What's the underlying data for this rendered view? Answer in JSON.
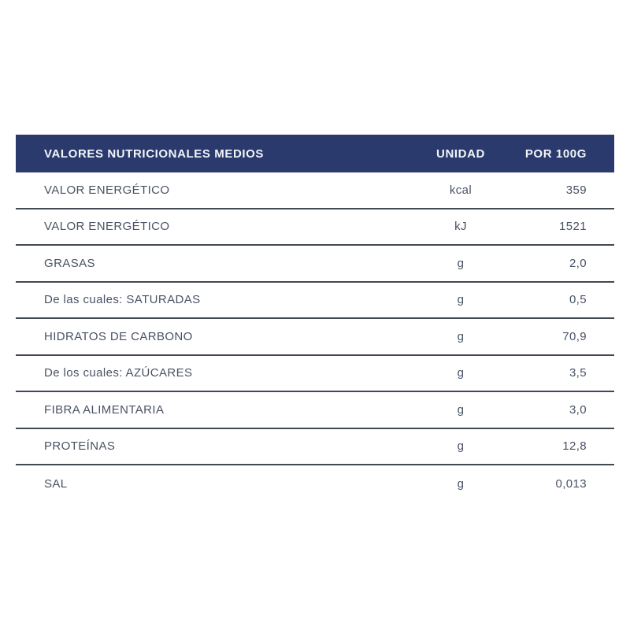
{
  "table": {
    "header": {
      "title": "VALORES NUTRICIONALES MEDIOS",
      "unit_column": "UNIDAD",
      "per_column": "POR 100G"
    },
    "rows": [
      {
        "label": "VALOR ENERGÉTICO",
        "unit": "kcal",
        "value": "359"
      },
      {
        "label": "VALOR ENERGÉTICO",
        "unit": "kJ",
        "value": "1521"
      },
      {
        "label": "GRASAS",
        "unit": "g",
        "value": "2,0"
      },
      {
        "label": "De las cuales: SATURADAS",
        "unit": "g",
        "value": "0,5"
      },
      {
        "label": "HIDRATOS DE CARBONO",
        "unit": "g",
        "value": "70,9"
      },
      {
        "label": "De los cuales: AZÚCARES",
        "unit": "g",
        "value": "3,5"
      },
      {
        "label": "FIBRA ALIMENTARIA",
        "unit": "g",
        "value": "3,0"
      },
      {
        "label": "PROTEÍNAS",
        "unit": "g",
        "value": "12,8"
      },
      {
        "label": "SAL",
        "unit": "g",
        "value": "0,013"
      }
    ],
    "colors": {
      "header_bg": "#2b3a6d",
      "header_text": "#f3f5fa",
      "body_text": "#495264",
      "divider": "#424955",
      "background": "#ffffff"
    }
  },
  "chart_data": {
    "type": "table",
    "title": "VALORES NUTRICIONALES MEDIOS",
    "columns": [
      "VALORES NUTRICIONALES MEDIOS",
      "UNIDAD",
      "POR 100G"
    ],
    "rows": [
      [
        "VALOR ENERGÉTICO",
        "kcal",
        "359"
      ],
      [
        "VALOR ENERGÉTICO",
        "kJ",
        "1521"
      ],
      [
        "GRASAS",
        "g",
        "2,0"
      ],
      [
        "De las cuales: SATURADAS",
        "g",
        "0,5"
      ],
      [
        "HIDRATOS DE CARBONO",
        "g",
        "70,9"
      ],
      [
        "De los cuales: AZÚCARES",
        "g",
        "3,5"
      ],
      [
        "FIBRA ALIMENTARIA",
        "g",
        "3,0"
      ],
      [
        "PROTEÍNAS",
        "g",
        "12,8"
      ],
      [
        "SAL",
        "g",
        "0,013"
      ]
    ],
    "notes": "Decimal commas as rendered; no rule below last row"
  }
}
